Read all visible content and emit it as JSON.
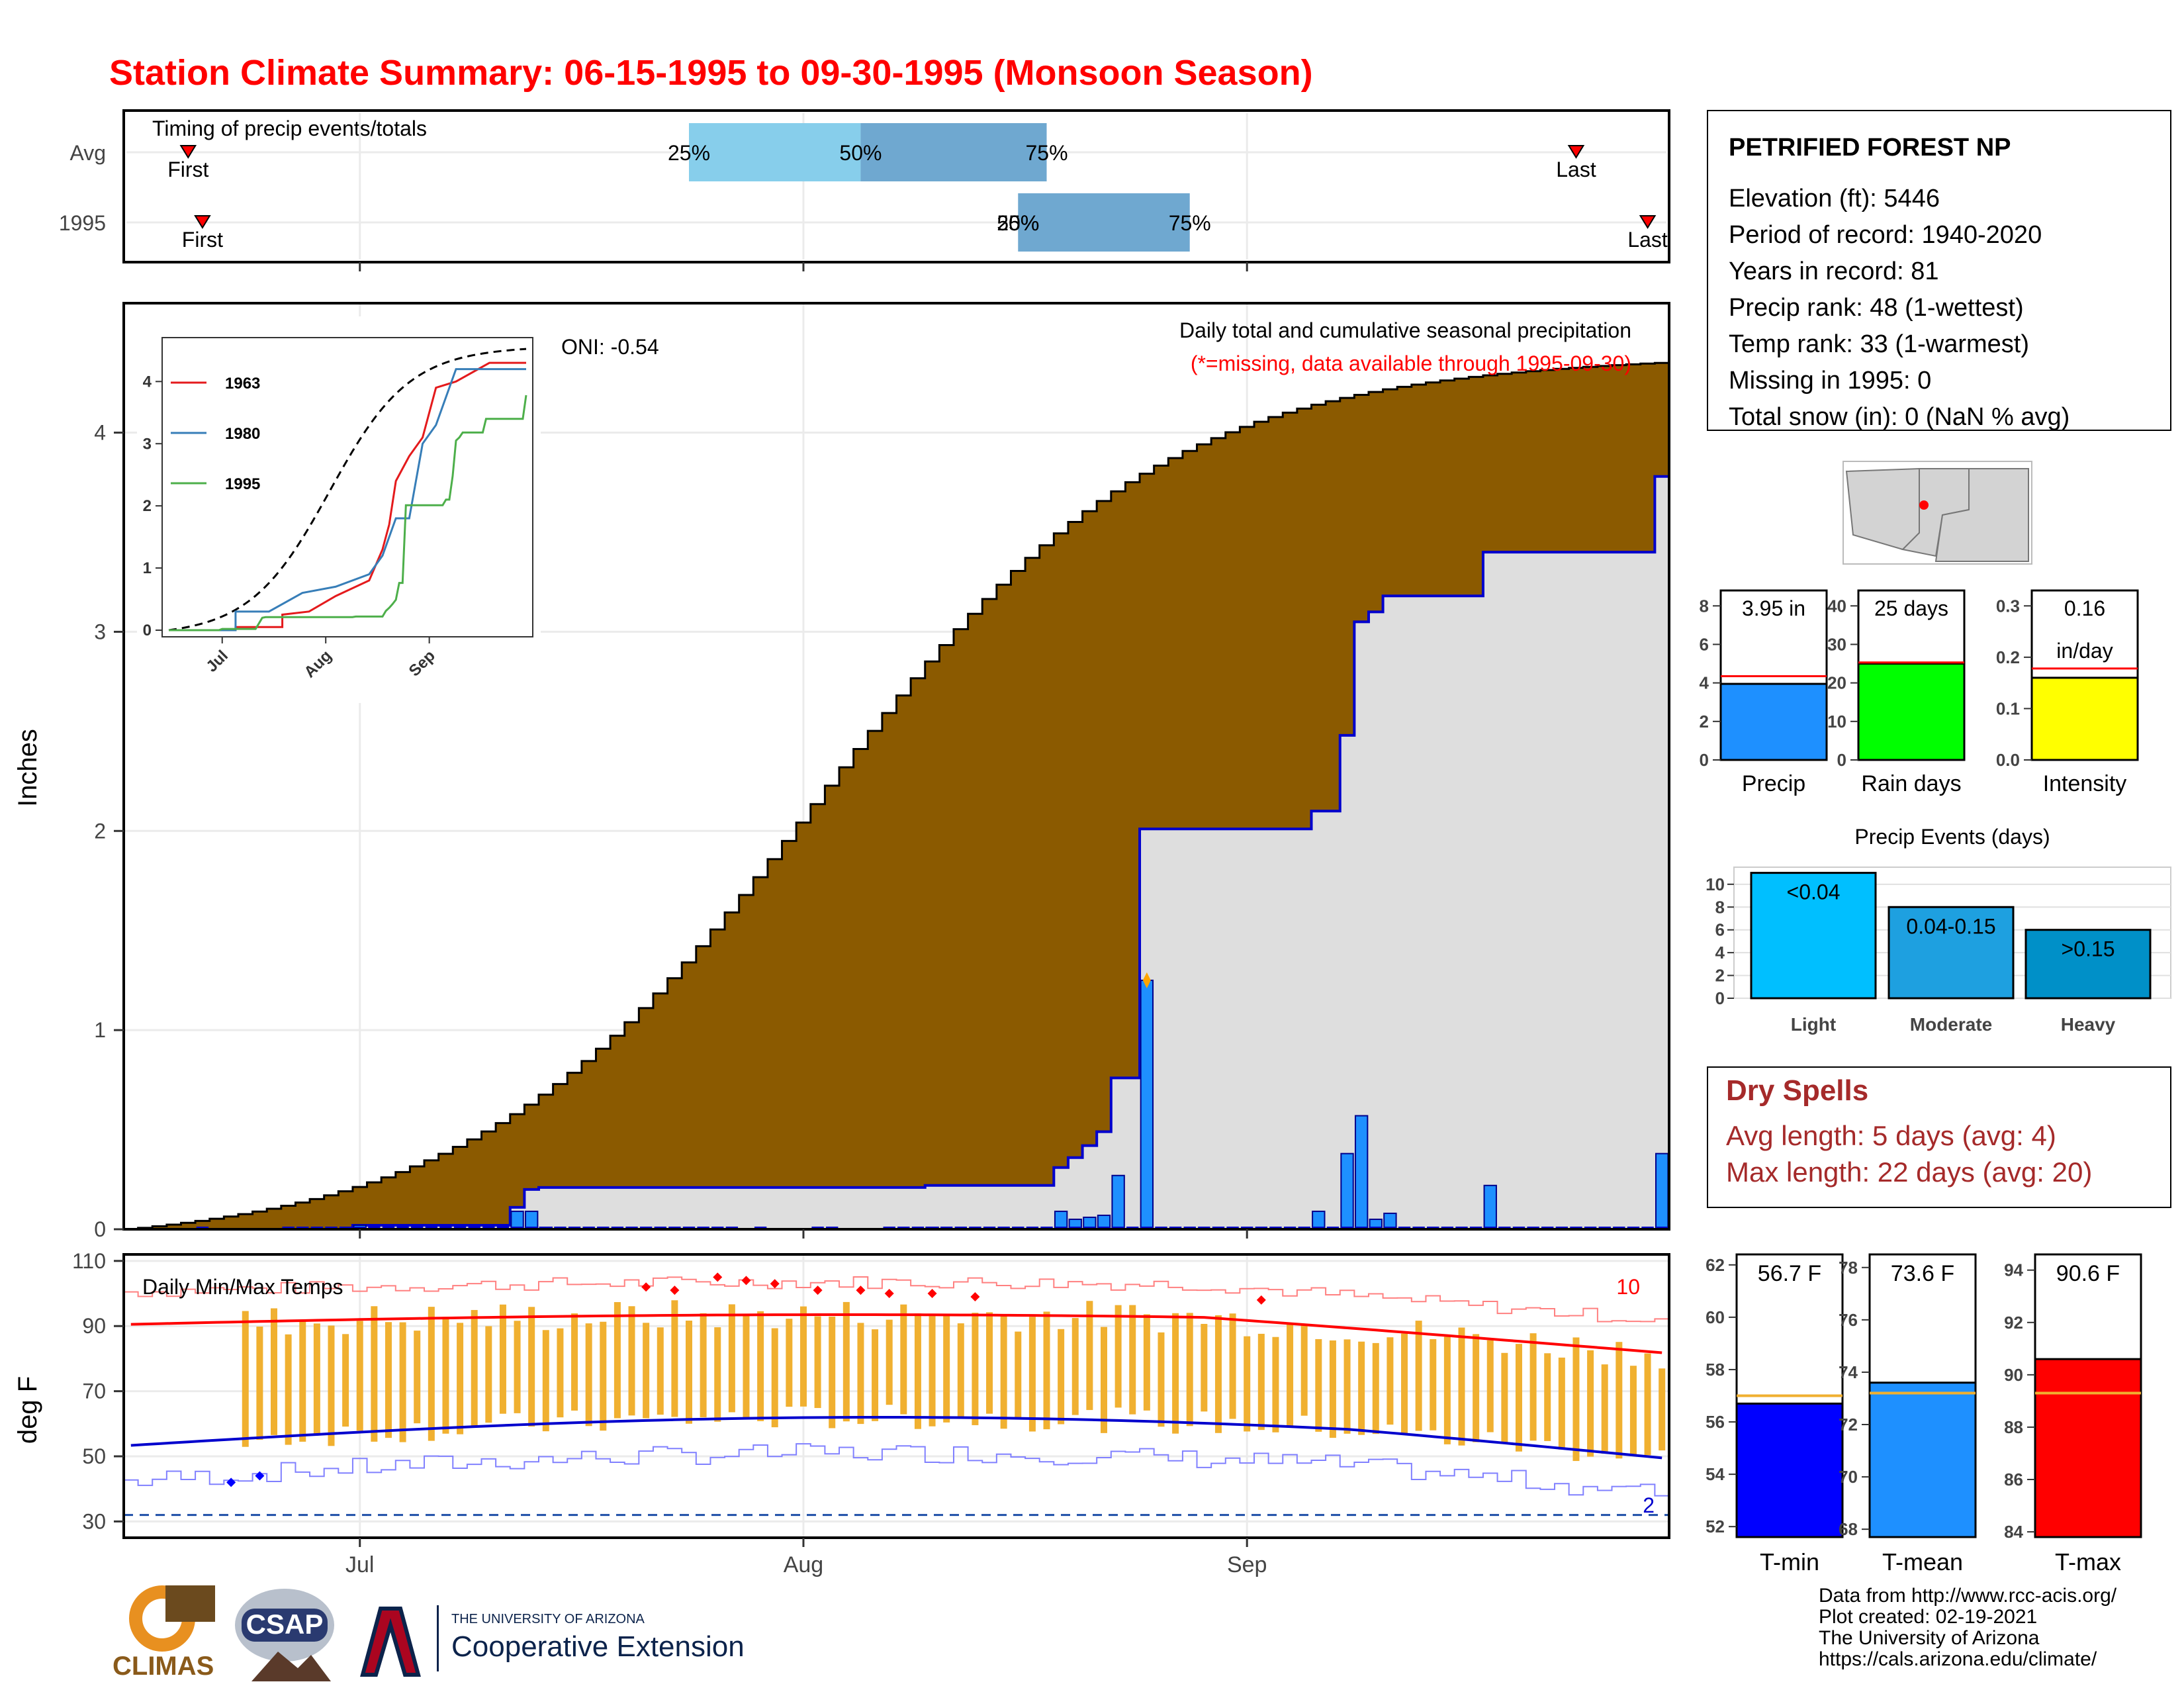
{
  "title": "Station Climate Summary: 06-15-1995 to 09-30-1995 (Monsoon Season)",
  "colors": {
    "title": "#ff0000",
    "precip_cum_avg": "#8b5a00",
    "precip_cum_year": "#dedede",
    "precip_bar": "#1e90ff",
    "precip_line": "#0000cd",
    "tmax_line": "#ff0000",
    "tmin_line": "#0000cd",
    "temp_bar": "#f0b030",
    "timing_light": "#87ceeb",
    "timing_mid": "#6fa8d0",
    "dry_spells": "#a52a2a"
  },
  "months": [
    "Jul",
    "Aug",
    "Sep"
  ],
  "timing": {
    "title": "Timing of precip events/totals",
    "rows": [
      "Avg",
      "1995"
    ],
    "first_label": "First",
    "last_label": "Last",
    "p25": "25%",
    "p50": "50%",
    "p75": "75%",
    "avg": {
      "first": "Jun 19",
      "p25": "Jul 24",
      "p50": "Aug 5",
      "p75": "Aug 18",
      "last": "Sep 24"
    },
    "y1995": {
      "first": "Jun 20",
      "p25": "Aug 16",
      "p50": "Aug 16",
      "p75": "Aug 28",
      "last": "Sep 29"
    }
  },
  "precip": {
    "ylabel": "Inches",
    "yticks": [
      "0",
      "1",
      "2",
      "3",
      "4"
    ],
    "subtitle": "Daily total and cumulative seasonal precipitation",
    "note": "(*=missing, data available through 1995-09-30)",
    "oni": "ONI: -0.54",
    "inset_ticks_y": [
      "0",
      "1",
      "2",
      "3",
      "4"
    ],
    "inset_ticks_x": [
      "Jul",
      "Aug",
      "Sep"
    ],
    "legend": [
      "1963",
      "1980",
      "1995"
    ]
  },
  "temps": {
    "ylabel": "deg F",
    "title": "Daily Min/Max Temps",
    "yticks": [
      "30",
      "50",
      "70",
      "90",
      "110"
    ],
    "count_hot": "10",
    "count_cold": "2"
  },
  "station": {
    "name": "PETRIFIED FOREST NP",
    "lines": [
      "Elevation (ft): 5446",
      "Period of record: 1940-2020",
      "Years in record: 81",
      "Precip rank: 48 (1-wettest)",
      "Temp rank: 33 (1-warmest)",
      "Missing in 1995: 0",
      "Total snow (in): 0 (NaN % avg)"
    ]
  },
  "summary_bars": [
    {
      "label": "Precip",
      "value_text": "3.95 in",
      "value": 3.95,
      "avg": 4.35,
      "ymax": 8.8,
      "ticks": [
        "0",
        "2",
        "4",
        "6",
        "8"
      ],
      "color": "#1e90ff"
    },
    {
      "label": "Rain days",
      "value_text": "25 days",
      "value": 25,
      "avg": 25.3,
      "ymax": 44,
      "ticks": [
        "0",
        "10",
        "20",
        "30",
        "40"
      ],
      "color": "#00ff00"
    },
    {
      "label": "Intensity",
      "value_text": "0.16",
      "value_text2": "in/day",
      "value": 0.16,
      "avg": 0.178,
      "ymax": 0.33,
      "ticks": [
        "0.0",
        "0.1",
        "0.2",
        "0.3"
      ],
      "color": "#ffff00"
    }
  ],
  "events": {
    "title": "Precip Events (days)",
    "categories": [
      "Light",
      "Moderate",
      "Heavy"
    ],
    "bar_labels": [
      "<0.04",
      "0.04-0.15",
      ">0.15"
    ],
    "values": [
      11,
      8,
      6
    ],
    "ticks": [
      "0",
      "2",
      "4",
      "6",
      "8",
      "10"
    ],
    "colors": [
      "#00bfff",
      "#1ea0e0",
      "#0090c8"
    ]
  },
  "dry_spells": {
    "title": "Dry Spells",
    "avg_line": "Avg length: 5 days (avg: 4)",
    "max_line": "Max length: 22 days (avg: 20)"
  },
  "temp_bars": [
    {
      "label": "T-min",
      "value_text": "56.7 F",
      "value": 56.7,
      "avg": 57.0,
      "ymin": 51.6,
      "ymax": 62.4,
      "ticks": [
        "52",
        "54",
        "56",
        "58",
        "60",
        "62"
      ],
      "color": "#0000ff"
    },
    {
      "label": "T-mean",
      "value_text": "73.6 F",
      "value": 73.6,
      "avg": 73.2,
      "ymin": 67.7,
      "ymax": 78.5,
      "ticks": [
        "68",
        "70",
        "72",
        "74",
        "76",
        "78"
      ],
      "color": "#1e90ff"
    },
    {
      "label": "T-max",
      "value_text": "90.6 F",
      "value": 90.6,
      "avg": 89.3,
      "ymin": 83.8,
      "ymax": 94.6,
      "ticks": [
        "84",
        "86",
        "88",
        "90",
        "92",
        "94"
      ],
      "color": "#ff0000"
    }
  ],
  "footer": {
    "logos": [
      "CLIMAS",
      "CSAP"
    ],
    "ua_small": "THE UNIVERSITY OF ARIZONA",
    "ua_big": "Cooperative Extension",
    "credits": [
      "Data from http://www.rcc-acis.org/",
      "Plot created: 02-19-2021",
      "The University of Arizona",
      "https://cals.arizona.edu/climate/"
    ]
  },
  "chart_data": {
    "type": "bar",
    "note": "Daily precipitation (in) 1995-06-15 .. 1995-09-30 (day 0 = Jun 15); cumulative series derived",
    "precip_days": [
      [
        5,
        0.01
      ],
      [
        11,
        0.01
      ],
      [
        12,
        0.01
      ],
      [
        13,
        0.01
      ],
      [
        14,
        0.01
      ],
      [
        15,
        0.01
      ],
      [
        16,
        0.01
      ],
      [
        17,
        0.01
      ],
      [
        18,
        0.01
      ],
      [
        19,
        0.01
      ],
      [
        20,
        0.01
      ],
      [
        21,
        0.01
      ],
      [
        22,
        0.01
      ],
      [
        23,
        0.01
      ],
      [
        24,
        0.01
      ],
      [
        25,
        0.01
      ],
      [
        26,
        0.01
      ],
      [
        27,
        0.01
      ],
      [
        28,
        0.01
      ],
      [
        29,
        0.01
      ],
      [
        30,
        0.01
      ],
      [
        31,
        0.01
      ],
      [
        32,
        0.01
      ],
      [
        33,
        0.01
      ],
      [
        34,
        0.01
      ],
      [
        35,
        0.01
      ],
      [
        36,
        0.01
      ],
      [
        37,
        0.01
      ],
      [
        38,
        0.01
      ],
      [
        39,
        0.01
      ],
      [
        40,
        0.01
      ],
      [
        41,
        0.01
      ],
      [
        42,
        0.01
      ],
      [
        44,
        0.01
      ],
      [
        48,
        0.01
      ],
      [
        49,
        0.01
      ],
      [
        53,
        0.01
      ],
      [
        54,
        0.01
      ],
      [
        55,
        0.01
      ],
      [
        56,
        0.01
      ],
      [
        57,
        0.01
      ],
      [
        58,
        0.01
      ],
      [
        59,
        0.01
      ],
      [
        60,
        0.01
      ],
      [
        61,
        0.01
      ],
      [
        62,
        0.01
      ],
      [
        63,
        0.01
      ],
      [
        64,
        0.01
      ],
      [
        65,
        0.01
      ],
      [
        66,
        0.01
      ],
      [
        67,
        0.01
      ],
      [
        68,
        0.01
      ],
      [
        69,
        0.01
      ],
      [
        70,
        0.01
      ],
      [
        71,
        0.01
      ],
      [
        72,
        0.01
      ],
      [
        73,
        0.01
      ],
      [
        74,
        0.01
      ],
      [
        75,
        0.01
      ],
      [
        76,
        0.01
      ],
      [
        77,
        0.01
      ],
      [
        78,
        0.01
      ],
      [
        79,
        0.01
      ],
      [
        80,
        0.01
      ],
      [
        81,
        0.01
      ],
      [
        82,
        0.01
      ],
      [
        83,
        0.01
      ],
      [
        84,
        0.01
      ],
      [
        85,
        0.01
      ],
      [
        86,
        0.01
      ],
      [
        87,
        0.01
      ],
      [
        88,
        0.01
      ],
      [
        89,
        0.01
      ],
      [
        90,
        0.01
      ],
      [
        91,
        0.01
      ],
      [
        92,
        0.01
      ],
      [
        93,
        0.01
      ],
      [
        94,
        0.01
      ],
      [
        95,
        0.01
      ],
      [
        96,
        0.01
      ],
      [
        97,
        0.01
      ],
      [
        98,
        0.01
      ],
      [
        99,
        0.01
      ],
      [
        100,
        0.01
      ],
      [
        101,
        0.01
      ],
      [
        102,
        0.01
      ],
      [
        103,
        0.01
      ],
      [
        104,
        0.01
      ],
      [
        105,
        0.01
      ],
      [
        106,
        0.01
      ],
      [
        107,
        0.01
      ]
    ],
    "daily_precip": [
      {
        "day": 16,
        "value": 0.02
      },
      {
        "day": 27,
        "value": 0.09
      },
      {
        "day": 28,
        "value": 0.09
      },
      {
        "day": 29,
        "value": 0.01
      },
      {
        "day": 56,
        "value": 0.01
      },
      {
        "day": 65,
        "value": 0.09
      },
      {
        "day": 66,
        "value": 0.05
      },
      {
        "day": 67,
        "value": 0.06
      },
      {
        "day": 68,
        "value": 0.07
      },
      {
        "day": 69,
        "value": 0.27
      },
      {
        "day": 71,
        "value": 1.25
      },
      {
        "day": 83,
        "value": 0.09
      },
      {
        "day": 85,
        "value": 0.38
      },
      {
        "day": 86,
        "value": 0.57
      },
      {
        "day": 87,
        "value": 0.05
      },
      {
        "day": 88,
        "value": 0.08
      },
      {
        "day": 95,
        "value": 0.22
      },
      {
        "day": 107,
        "value": 0.38
      }
    ],
    "cumulative_avg_endpoints": {
      "start": 0.0,
      "end": 4.35
    },
    "cumulative_1995_end": 3.95,
    "ylim": [
      0,
      4.65
    ],
    "temps_ylim": [
      25,
      112
    ]
  }
}
